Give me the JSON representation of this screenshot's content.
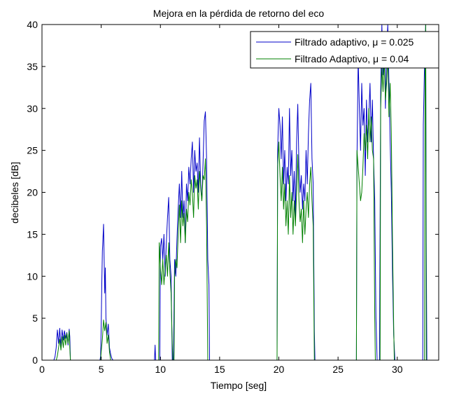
{
  "chart_data": {
    "type": "line",
    "title": "Mejora en la pérdida de retorno del eco",
    "xlabel": "Tiempo [seg]",
    "ylabel": "decibeles [dB]",
    "xlim": [
      0,
      33.5
    ],
    "ylim": [
      0,
      40
    ],
    "xticks": [
      0,
      5,
      10,
      15,
      20,
      25,
      30
    ],
    "yticks": [
      0,
      5,
      10,
      15,
      20,
      25,
      30,
      35,
      40
    ],
    "grid": false,
    "legend_position": "top-right",
    "series": [
      {
        "name": "Filtrado adaptivo, μ = 0.025",
        "color": "#0000c8",
        "points": [
          [
            0,
            0
          ],
          [
            1.0,
            0
          ],
          [
            1.1,
            0.4
          ],
          [
            1.2,
            1.5
          ],
          [
            1.3,
            3.6
          ],
          [
            1.4,
            2.0
          ],
          [
            1.5,
            3.8
          ],
          [
            1.6,
            1.5
          ],
          [
            1.7,
            3.6
          ],
          [
            1.8,
            2.4
          ],
          [
            1.9,
            3.5
          ],
          [
            2.0,
            2.6
          ],
          [
            2.1,
            3.3
          ],
          [
            2.2,
            1.8
          ],
          [
            2.3,
            3.7
          ],
          [
            2.35,
            2.8
          ],
          [
            2.4,
            0
          ],
          [
            4.9,
            0
          ],
          [
            4.95,
            0.5
          ],
          [
            5.0,
            4.0
          ],
          [
            5.05,
            9.0
          ],
          [
            5.1,
            13.0
          ],
          [
            5.15,
            14.5
          ],
          [
            5.2,
            16.2
          ],
          [
            5.25,
            12.0
          ],
          [
            5.3,
            8.0
          ],
          [
            5.35,
            11.0
          ],
          [
            5.4,
            5.0
          ],
          [
            5.5,
            3.0
          ],
          [
            5.6,
            4.3
          ],
          [
            5.7,
            1.5
          ],
          [
            5.8,
            0.7
          ],
          [
            5.9,
            0.2
          ],
          [
            6.0,
            0
          ],
          [
            9.5,
            0
          ],
          [
            9.55,
            1.8
          ],
          [
            9.6,
            0
          ],
          [
            9.95,
            0
          ],
          [
            10.0,
            13.5
          ],
          [
            10.1,
            14.5
          ],
          [
            10.2,
            12.0
          ],
          [
            10.3,
            15.0
          ],
          [
            10.4,
            10.0
          ],
          [
            10.5,
            14.0
          ],
          [
            10.6,
            17.0
          ],
          [
            10.7,
            19.4
          ],
          [
            10.8,
            12.0
          ],
          [
            10.9,
            10.0
          ],
          [
            11.0,
            0
          ],
          [
            11.1,
            0
          ],
          [
            11.2,
            12.0
          ],
          [
            11.3,
            10.0
          ],
          [
            11.4,
            14.5
          ],
          [
            11.5,
            18.0
          ],
          [
            11.6,
            21.0
          ],
          [
            11.7,
            17.0
          ],
          [
            11.8,
            22.5
          ],
          [
            11.9,
            17.0
          ],
          [
            12.0,
            19.0
          ],
          [
            12.1,
            14.0
          ],
          [
            12.2,
            21.0
          ],
          [
            12.3,
            19.0
          ],
          [
            12.4,
            23.0
          ],
          [
            12.5,
            21.0
          ],
          [
            12.6,
            24.0
          ],
          [
            12.7,
            26.0
          ],
          [
            12.8,
            20.0
          ],
          [
            12.9,
            25.0
          ],
          [
            13.0,
            22.5
          ],
          [
            13.1,
            23.5
          ],
          [
            13.2,
            20.0
          ],
          [
            13.3,
            26.5
          ],
          [
            13.4,
            21.0
          ],
          [
            13.5,
            19.0
          ],
          [
            13.6,
            23.5
          ],
          [
            13.7,
            28.5
          ],
          [
            13.8,
            29.6
          ],
          [
            13.9,
            24.0
          ],
          [
            14.0,
            12.0
          ],
          [
            14.1,
            9.0
          ],
          [
            14.15,
            0
          ],
          [
            19.85,
            0
          ],
          [
            19.9,
            25.0
          ],
          [
            20.0,
            30.0
          ],
          [
            20.1,
            28.0
          ],
          [
            20.2,
            24.0
          ],
          [
            20.3,
            29.0
          ],
          [
            20.4,
            21.0
          ],
          [
            20.5,
            25.0
          ],
          [
            20.6,
            19.0
          ],
          [
            20.7,
            23.0
          ],
          [
            20.8,
            21.0
          ],
          [
            20.9,
            30.0
          ],
          [
            21.0,
            22.0
          ],
          [
            21.1,
            25.0
          ],
          [
            21.2,
            19.0
          ],
          [
            21.3,
            22.5
          ],
          [
            21.4,
            17.0
          ],
          [
            21.5,
            26.0
          ],
          [
            21.6,
            30.5
          ],
          [
            21.7,
            23.0
          ],
          [
            21.8,
            20.0
          ],
          [
            21.9,
            22.0
          ],
          [
            22.0,
            18.0
          ],
          [
            22.1,
            21.0
          ],
          [
            22.2,
            19.0
          ],
          [
            22.3,
            25.0
          ],
          [
            22.4,
            21.0
          ],
          [
            22.5,
            27.0
          ],
          [
            22.6,
            31.0
          ],
          [
            22.7,
            33.0
          ],
          [
            22.8,
            24.0
          ],
          [
            22.9,
            21.0
          ],
          [
            23.0,
            3.5
          ],
          [
            23.05,
            0
          ],
          [
            26.55,
            0
          ],
          [
            26.6,
            24.0
          ],
          [
            26.7,
            36.0
          ],
          [
            26.8,
            30.0
          ],
          [
            26.9,
            25.0
          ],
          [
            27.0,
            33.0
          ],
          [
            27.1,
            28.0
          ],
          [
            27.2,
            30.0
          ],
          [
            27.3,
            22.0
          ],
          [
            27.4,
            31.0
          ],
          [
            27.5,
            26.0
          ],
          [
            27.6,
            29.0
          ],
          [
            27.7,
            33.0
          ],
          [
            27.8,
            26.0
          ],
          [
            27.9,
            31.0
          ],
          [
            28.0,
            24.0
          ],
          [
            28.1,
            19.0
          ],
          [
            28.2,
            5.0
          ],
          [
            28.3,
            0
          ],
          [
            28.5,
            0
          ],
          [
            28.6,
            32.0
          ],
          [
            28.7,
            40.0
          ],
          [
            28.8,
            34.0
          ],
          [
            28.9,
            39.0
          ],
          [
            29.0,
            30.0
          ],
          [
            29.1,
            37.0
          ],
          [
            29.2,
            40.0
          ],
          [
            29.3,
            33.0
          ],
          [
            29.4,
            26.0
          ],
          [
            29.5,
            20.0
          ],
          [
            29.6,
            10.0
          ],
          [
            29.7,
            3.0
          ],
          [
            29.8,
            0
          ],
          [
            32.15,
            0
          ],
          [
            32.2,
            28.0
          ],
          [
            32.3,
            35.0
          ],
          [
            32.4,
            40.0
          ],
          [
            32.45,
            14.0
          ],
          [
            32.5,
            0
          ],
          [
            33.5,
            0
          ]
        ]
      },
      {
        "name": "Filtrado Adaptivo, μ = 0.04",
        "color": "#008000",
        "points": [
          [
            0,
            0
          ],
          [
            1.2,
            0
          ],
          [
            1.3,
            0.5
          ],
          [
            1.4,
            1.5
          ],
          [
            1.5,
            2.5
          ],
          [
            1.6,
            1.2
          ],
          [
            1.7,
            2.8
          ],
          [
            1.8,
            1.5
          ],
          [
            1.9,
            3.0
          ],
          [
            2.0,
            1.8
          ],
          [
            2.1,
            3.2
          ],
          [
            2.2,
            2.0
          ],
          [
            2.3,
            3.5
          ],
          [
            2.35,
            1.5
          ],
          [
            2.4,
            0
          ],
          [
            4.95,
            0
          ],
          [
            5.0,
            1.0
          ],
          [
            5.1,
            2.5
          ],
          [
            5.2,
            4.8
          ],
          [
            5.3,
            3.5
          ],
          [
            5.4,
            4.5
          ],
          [
            5.5,
            2.0
          ],
          [
            5.6,
            3.0
          ],
          [
            5.7,
            1.0
          ],
          [
            5.8,
            0
          ],
          [
            9.85,
            0
          ],
          [
            9.9,
            14.0
          ],
          [
            10.0,
            11.0
          ],
          [
            10.1,
            9.0
          ],
          [
            10.2,
            12.0
          ],
          [
            10.3,
            9.0
          ],
          [
            10.4,
            11.0
          ],
          [
            10.5,
            12.5
          ],
          [
            10.6,
            10.0
          ],
          [
            10.7,
            14.0
          ],
          [
            10.8,
            10.5
          ],
          [
            10.9,
            8.0
          ],
          [
            11.0,
            2.0
          ],
          [
            11.05,
            0
          ],
          [
            11.15,
            0
          ],
          [
            11.2,
            10.0
          ],
          [
            11.3,
            12.0
          ],
          [
            11.4,
            11.0
          ],
          [
            11.5,
            15.0
          ],
          [
            11.6,
            18.5
          ],
          [
            11.7,
            14.0
          ],
          [
            11.8,
            19.0
          ],
          [
            11.9,
            16.0
          ],
          [
            12.0,
            17.5
          ],
          [
            12.1,
            14.0
          ],
          [
            12.2,
            18.0
          ],
          [
            12.3,
            16.5
          ],
          [
            12.4,
            20.0
          ],
          [
            12.5,
            18.5
          ],
          [
            12.6,
            21.5
          ],
          [
            12.7,
            20.0
          ],
          [
            12.8,
            17.0
          ],
          [
            12.9,
            22.0
          ],
          [
            13.0,
            20.5
          ],
          [
            13.1,
            21.5
          ],
          [
            13.2,
            18.0
          ],
          [
            13.3,
            22.5
          ],
          [
            13.4,
            20.5
          ],
          [
            13.5,
            19.0
          ],
          [
            13.6,
            22.0
          ],
          [
            13.7,
            21.5
          ],
          [
            13.8,
            24.0
          ],
          [
            13.9,
            16.0
          ],
          [
            14.0,
            0
          ],
          [
            19.85,
            0
          ],
          [
            19.9,
            23.0
          ],
          [
            20.0,
            26.0
          ],
          [
            20.1,
            22.0
          ],
          [
            20.2,
            19.0
          ],
          [
            20.3,
            23.0
          ],
          [
            20.4,
            18.0
          ],
          [
            20.5,
            21.0
          ],
          [
            20.6,
            16.0
          ],
          [
            20.7,
            19.0
          ],
          [
            20.8,
            15.0
          ],
          [
            20.9,
            22.0
          ],
          [
            21.0,
            17.0
          ],
          [
            21.1,
            20.0
          ],
          [
            21.2,
            15.0
          ],
          [
            21.3,
            19.0
          ],
          [
            21.4,
            16.0
          ],
          [
            21.5,
            20.0
          ],
          [
            21.6,
            24.5
          ],
          [
            21.7,
            19.0
          ],
          [
            21.8,
            16.5
          ],
          [
            21.9,
            18.0
          ],
          [
            22.0,
            14.0
          ],
          [
            22.1,
            19.0
          ],
          [
            22.2,
            15.0
          ],
          [
            22.3,
            18.0
          ],
          [
            22.4,
            20.0
          ],
          [
            22.5,
            17.0
          ],
          [
            22.6,
            21.0
          ],
          [
            22.7,
            23.0
          ],
          [
            22.8,
            19.0
          ],
          [
            22.9,
            16.0
          ],
          [
            23.0,
            0
          ],
          [
            26.55,
            0
          ],
          [
            26.6,
            25.0
          ],
          [
            26.7,
            23.0
          ],
          [
            26.8,
            21.0
          ],
          [
            26.9,
            19.0
          ],
          [
            27.0,
            20.0
          ],
          [
            27.1,
            23.0
          ],
          [
            27.2,
            27.0
          ],
          [
            27.3,
            25.0
          ],
          [
            27.4,
            28.0
          ],
          [
            27.5,
            24.0
          ],
          [
            27.6,
            30.0
          ],
          [
            27.7,
            26.0
          ],
          [
            27.8,
            29.0
          ],
          [
            27.9,
            25.0
          ],
          [
            28.0,
            24.0
          ],
          [
            28.1,
            5.0
          ],
          [
            28.15,
            0
          ],
          [
            28.55,
            0
          ],
          [
            28.6,
            30.0
          ],
          [
            28.7,
            35.0
          ],
          [
            28.8,
            32.0
          ],
          [
            28.9,
            36.0
          ],
          [
            29.0,
            31.0
          ],
          [
            29.1,
            33.0
          ],
          [
            29.2,
            36.5
          ],
          [
            29.3,
            29.0
          ],
          [
            29.4,
            33.0
          ],
          [
            29.5,
            27.0
          ],
          [
            29.6,
            14.0
          ],
          [
            29.7,
            4.0
          ],
          [
            29.75,
            0
          ],
          [
            32.3,
            0
          ],
          [
            32.35,
            36.0
          ],
          [
            32.4,
            40.0
          ],
          [
            32.45,
            0
          ],
          [
            33.5,
            0
          ]
        ]
      }
    ]
  }
}
